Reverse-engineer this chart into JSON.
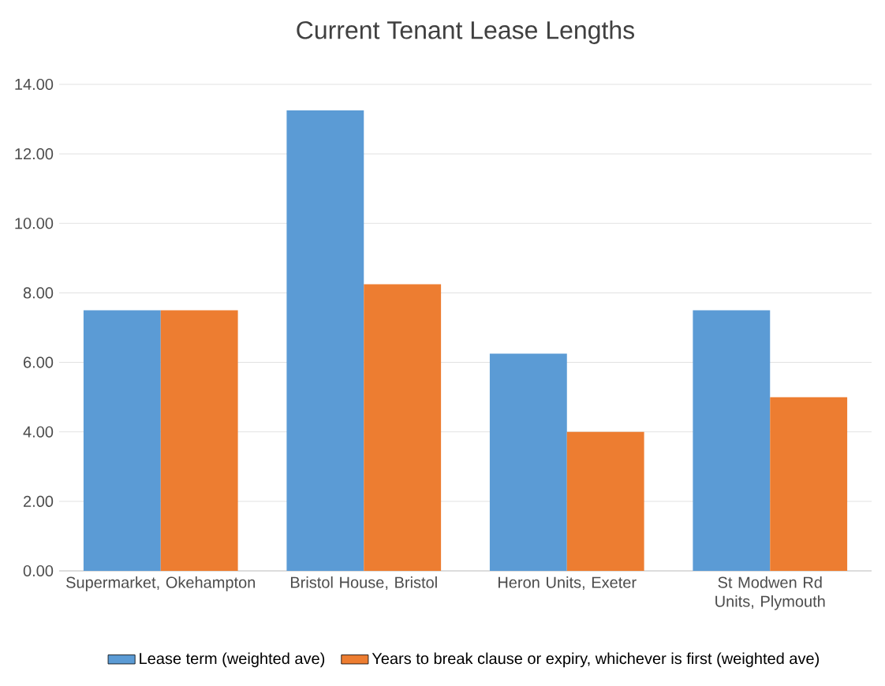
{
  "chart_data": {
    "type": "bar",
    "title": "Current Tenant Lease Lengths",
    "categories": [
      "Supermarket, Okehampton",
      "Bristol House, Bristol",
      "Heron Units, Exeter",
      "St Modwen Rd Units, Plymouth"
    ],
    "series": [
      {
        "name": "Lease term (weighted ave)",
        "color": "#5b9bd5",
        "values": [
          7.5,
          13.25,
          6.25,
          7.5
        ]
      },
      {
        "name": "Years to break clause or expiry, whichever is first (weighted ave)",
        "color": "#ed7d31",
        "values": [
          7.5,
          8.25,
          4.0,
          5.0
        ]
      }
    ],
    "ylim": [
      0,
      14
    ],
    "yticks": [
      {
        "value": 0,
        "label": "0.00"
      },
      {
        "value": 2,
        "label": "2.00"
      },
      {
        "value": 4,
        "label": "4.00"
      },
      {
        "value": 6,
        "label": "6.00"
      },
      {
        "value": 8,
        "label": "8.00"
      },
      {
        "value": 10,
        "label": "10.00"
      },
      {
        "value": 12,
        "label": "12.00"
      },
      {
        "value": 14,
        "label": "14.00"
      }
    ],
    "grid": "y",
    "legend": "bottom"
  }
}
